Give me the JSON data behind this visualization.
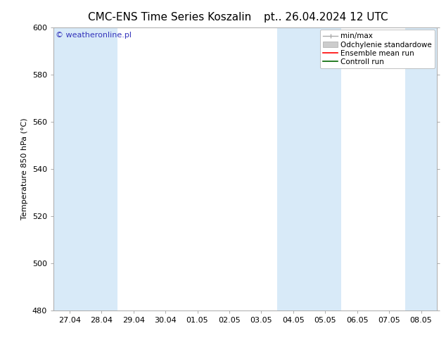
{
  "title_left": "CMC-ENS Time Series Koszalin",
  "title_right": "pt.. 26.04.2024 12 UTC",
  "ylabel": "Temperature 850 hPa (°C)",
  "ylim": [
    480,
    600
  ],
  "yticks": [
    480,
    500,
    520,
    540,
    560,
    580,
    600
  ],
  "watermark": "© weatheronline.pl",
  "watermark_color": "#3333bb",
  "bg_color": "#ffffff",
  "shaded_band_color": "#d8eaf8",
  "x_tick_labels": [
    "27.04",
    "28.04",
    "29.04",
    "30.04",
    "01.05",
    "02.05",
    "03.05",
    "04.05",
    "05.05",
    "06.05",
    "07.05",
    "08.05"
  ],
  "shaded_x_indices": [
    0,
    1,
    7,
    8,
    11
  ],
  "legend_labels": [
    "min/max",
    "Odchylenie standardowe",
    "Ensemble mean run",
    "Controll run"
  ],
  "legend_colors_line": [
    "#aaaaaa",
    "#bbbbbb",
    "#ff0000",
    "#006600"
  ],
  "title_fontsize": 11,
  "axis_fontsize": 8,
  "watermark_fontsize": 8,
  "legend_fontsize": 7.5
}
